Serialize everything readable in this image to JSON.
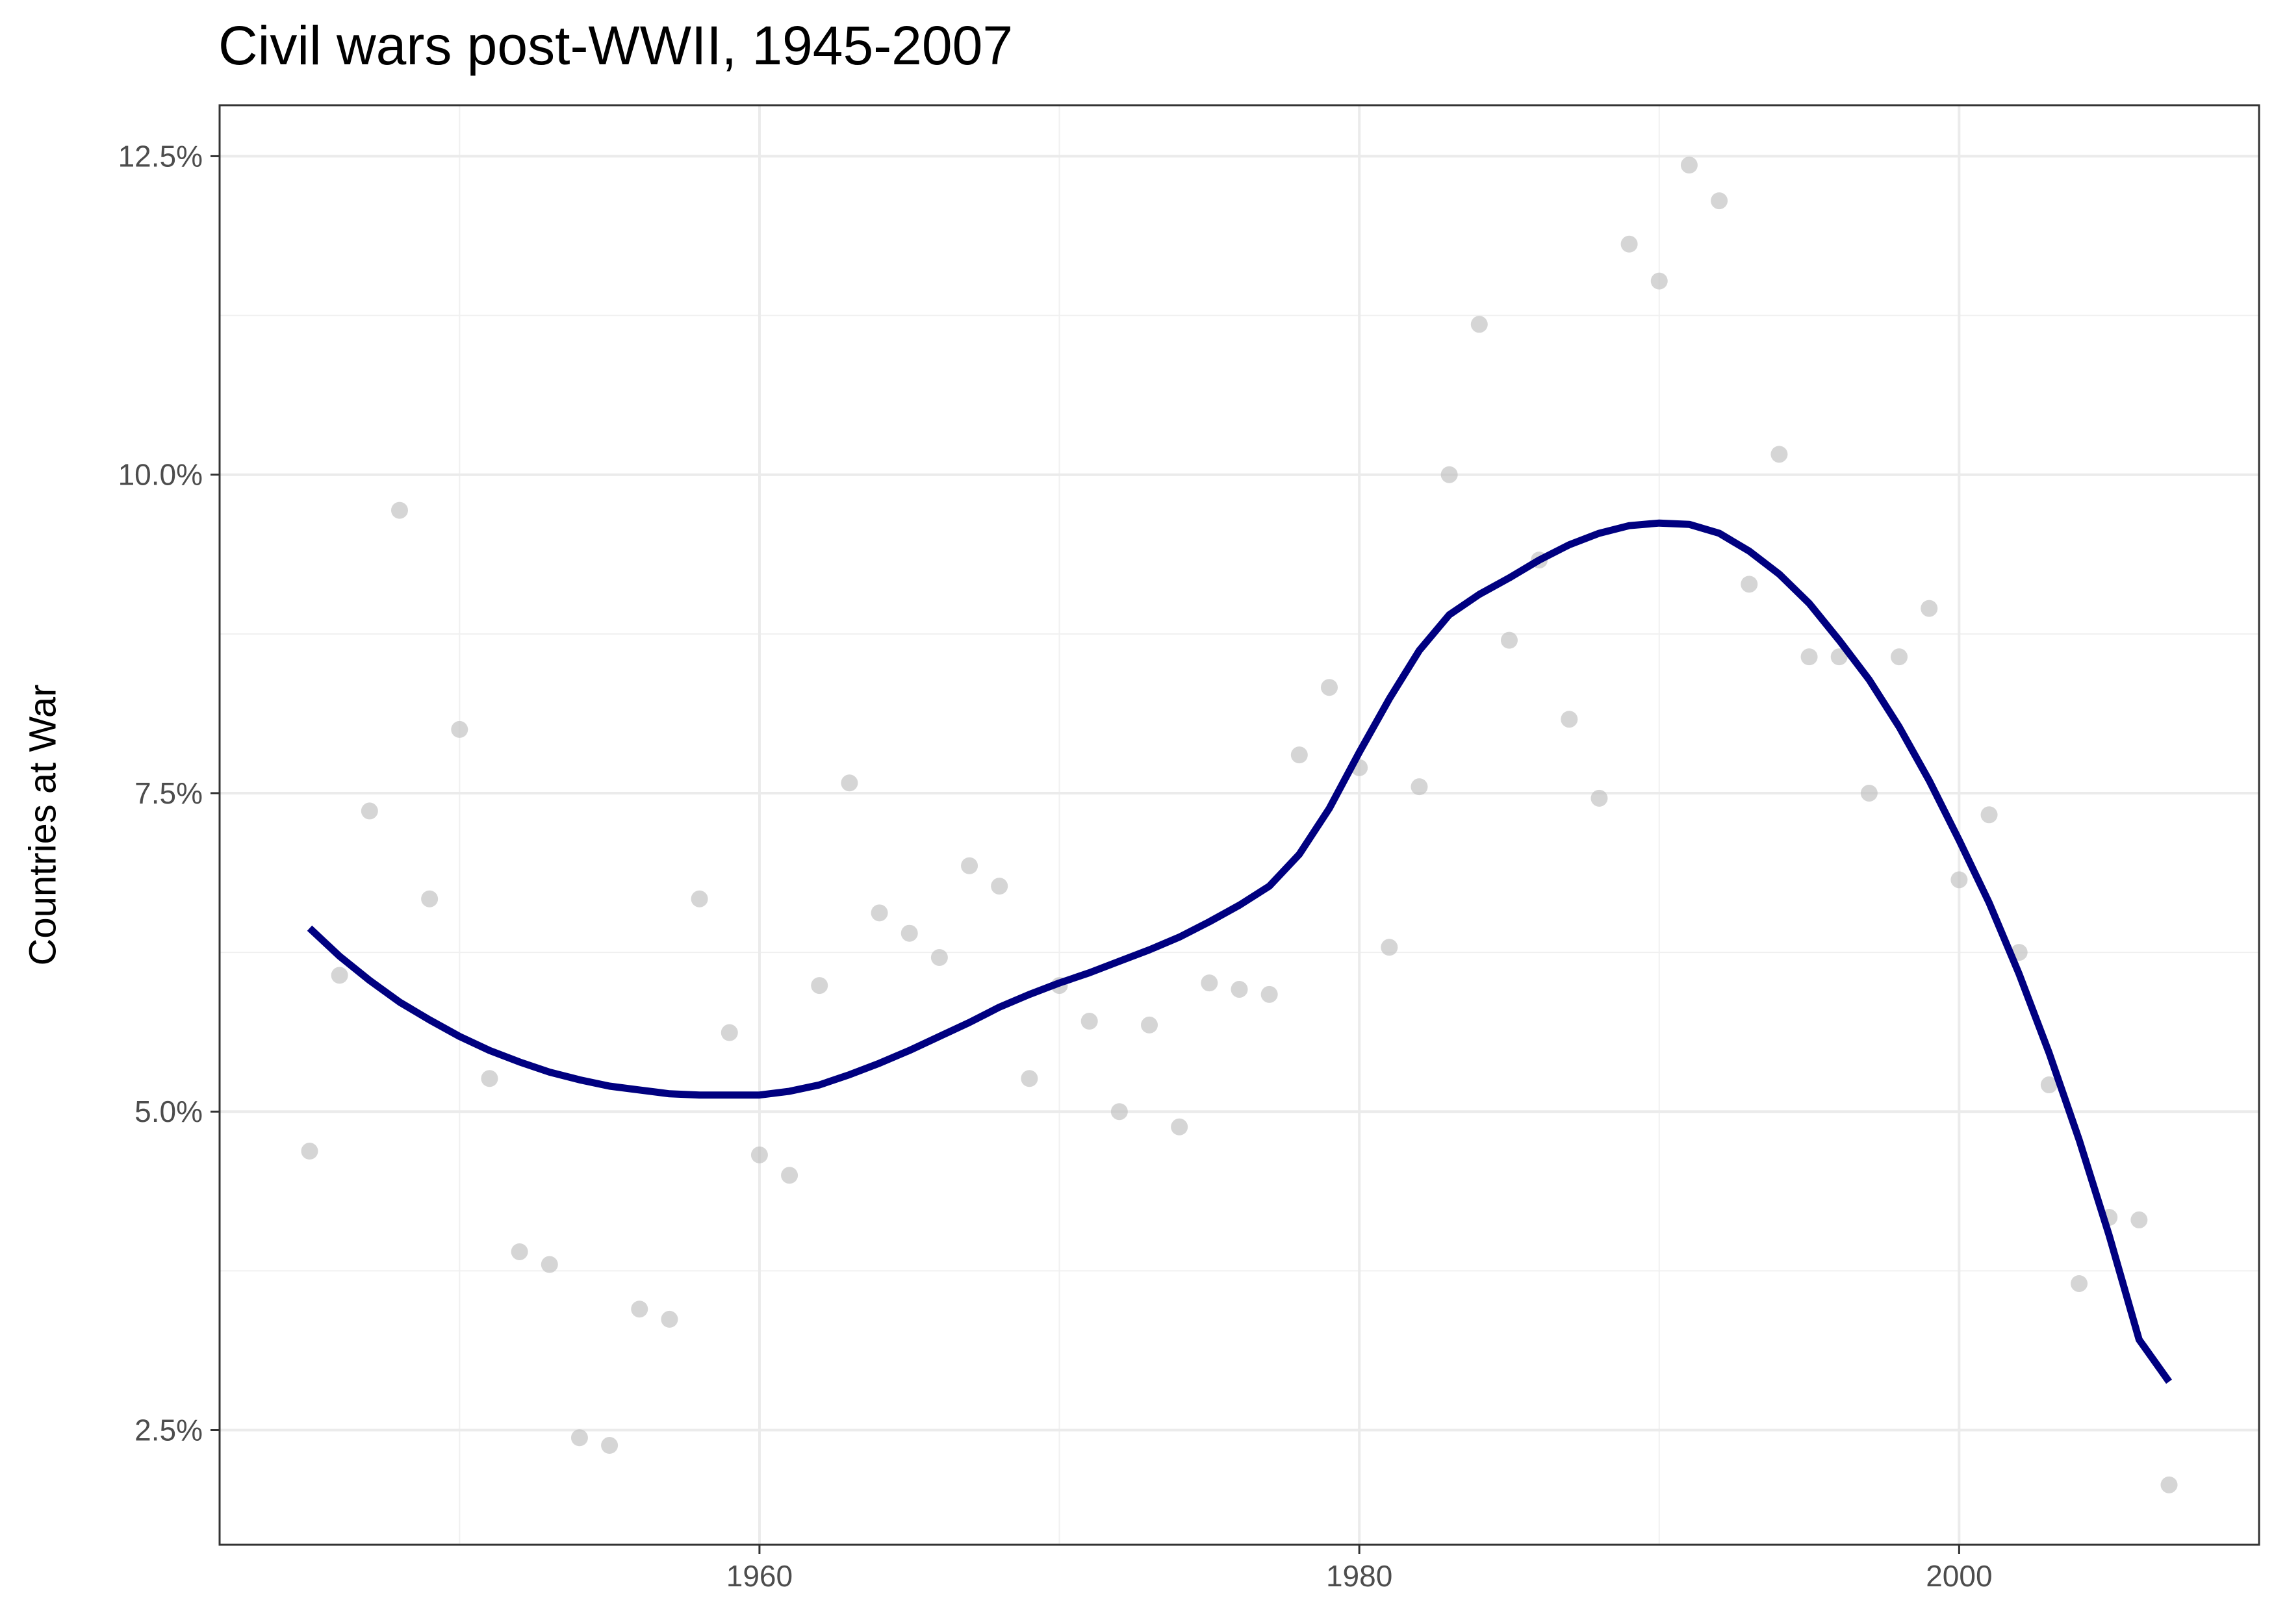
{
  "chart_data": {
    "type": "scatter",
    "title": "Civil wars post-WWII, 1945-2007",
    "xlabel": "",
    "ylabel": "Countries at War",
    "xlim": [
      1942,
      2010
    ],
    "ylim": [
      1.6,
      12.9
    ],
    "x_ticks": [
      {
        "value": 1960,
        "label": "1960"
      },
      {
        "value": 1980,
        "label": "1980"
      },
      {
        "value": 2000,
        "label": "2000"
      }
    ],
    "y_ticks": [
      {
        "value": 2.5,
        "label": "2.5%"
      },
      {
        "value": 5.0,
        "label": "5.0%"
      },
      {
        "value": 7.5,
        "label": "7.5%"
      },
      {
        "value": 10.0,
        "label": "10.0%"
      },
      {
        "value": 12.5,
        "label": "12.5%"
      }
    ],
    "grid": true,
    "points": {
      "color": "#bfbfbf",
      "x": [
        1945,
        1946,
        1947,
        1948,
        1949,
        1950,
        1951,
        1952,
        1953,
        1954,
        1955,
        1956,
        1957,
        1958,
        1959,
        1960,
        1961,
        1962,
        1963,
        1964,
        1965,
        1966,
        1967,
        1968,
        1969,
        1970,
        1971,
        1972,
        1973,
        1974,
        1975,
        1976,
        1977,
        1978,
        1979,
        1980,
        1981,
        1982,
        1983,
        1984,
        1985,
        1986,
        1987,
        1988,
        1989,
        1990,
        1991,
        1992,
        1993,
        1994,
        1995,
        1996,
        1997,
        1998,
        1999,
        2000,
        2001,
        2002,
        2003,
        2004,
        2005,
        2006,
        2007
      ],
      "y": [
        4.69,
        6.07,
        7.36,
        9.72,
        6.67,
        8.0,
        5.26,
        3.9,
        3.8,
        2.44,
        2.38,
        3.45,
        3.37,
        6.67,
        5.62,
        4.66,
        4.5,
        5.99,
        7.58,
        6.56,
        6.4,
        6.21,
        6.93,
        6.77,
        5.26,
        5.99,
        5.71,
        5.0,
        5.68,
        4.88,
        6.01,
        5.96,
        5.92,
        7.8,
        8.33,
        7.7,
        6.29,
        7.55,
        10.0,
        11.18,
        8.7,
        9.33,
        8.08,
        7.46,
        11.81,
        11.52,
        12.43,
        12.15,
        9.14,
        10.16,
        8.57,
        8.57,
        7.5,
        8.57,
        8.95,
        6.82,
        7.33,
        6.25,
        5.21,
        3.65,
        4.17,
        4.15,
        2.07
      ]
    },
    "series": [
      {
        "color": "#000080",
        "x": [
          1945,
          1946,
          1947,
          1948,
          1949,
          1950,
          1951,
          1952,
          1953,
          1954,
          1955,
          1956,
          1957,
          1958,
          1959,
          1960,
          1961,
          1962,
          1963,
          1964,
          1965,
          1966,
          1967,
          1968,
          1969,
          1970,
          1971,
          1972,
          1973,
          1974,
          1975,
          1976,
          1977,
          1978,
          1979,
          1980,
          1981,
          1982,
          1983,
          1984,
          1985,
          1986,
          1987,
          1988,
          1989,
          1990,
          1991,
          1992,
          1993,
          1994,
          1995,
          1996,
          1997,
          1998,
          1999,
          2000,
          2001,
          2002,
          2003,
          2004,
          2005,
          2006,
          2007
        ],
        "y": [
          6.44,
          6.22,
          6.03,
          5.86,
          5.72,
          5.59,
          5.48,
          5.39,
          5.31,
          5.25,
          5.2,
          5.17,
          5.14,
          5.13,
          5.13,
          5.13,
          5.16,
          5.21,
          5.29,
          5.38,
          5.48,
          5.59,
          5.7,
          5.82,
          5.92,
          6.01,
          6.09,
          6.18,
          6.27,
          6.37,
          6.49,
          6.62,
          6.77,
          7.02,
          7.38,
          7.82,
          8.24,
          8.62,
          8.9,
          9.06,
          9.19,
          9.33,
          9.45,
          9.54,
          9.6,
          9.62,
          9.61,
          9.54,
          9.4,
          9.22,
          8.99,
          8.7,
          8.39,
          8.02,
          7.6,
          7.13,
          6.64,
          6.08,
          5.46,
          4.78,
          4.03,
          3.21,
          2.88
        ]
      }
    ]
  }
}
